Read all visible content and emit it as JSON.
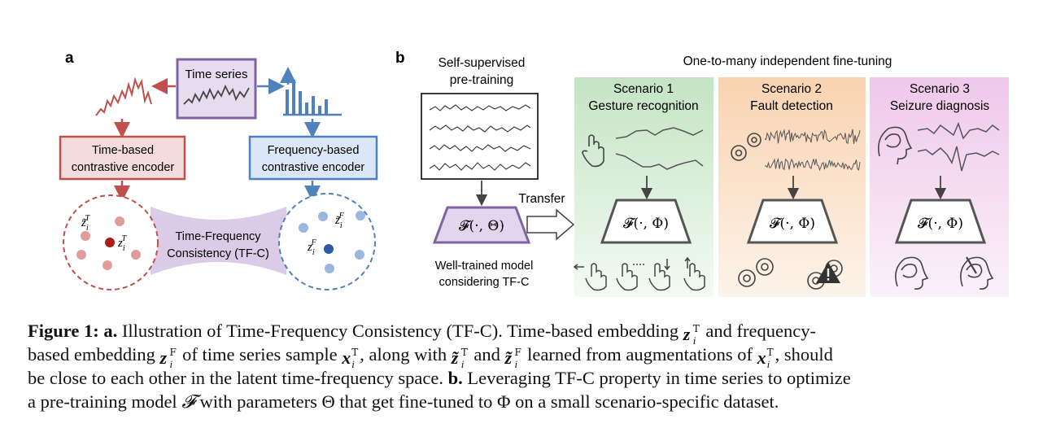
{
  "panel_a": {
    "label": "a",
    "time_series_label": "Time series",
    "time_encoder": [
      "Time-based",
      "contrastive encoder"
    ],
    "freq_encoder": [
      "Frequency-based",
      "contrastive encoder"
    ],
    "consistency": [
      "Time-Frequency",
      "Consistency (TF-C)"
    ],
    "z_t_aug": "z̃",
    "z_t": "z",
    "z_f_aug": "z̃",
    "z_f": "z",
    "sub_i": "i",
    "sup_T": "T",
    "sup_F": "F"
  },
  "panel_b": {
    "label": "b",
    "pretrain_title": [
      "Self-supervised",
      "pre-training"
    ],
    "finetune_title": "One-to-many independent fine-tuning",
    "transfer": "Transfer",
    "pretrain_model": "𝓕(·, Θ)",
    "finetune_model": "𝓕(·, Φ)",
    "well_trained": [
      "Well-trained model",
      "considering TF-C"
    ],
    "scenarios": [
      {
        "title": "Scenario 1",
        "subtitle": "Gesture recognition"
      },
      {
        "title": "Scenario 2",
        "subtitle": "Fault detection"
      },
      {
        "title": "Scenario 3",
        "subtitle": "Seizure diagnosis"
      }
    ]
  },
  "colors": {
    "time_red": "#c0504d",
    "freq_blue": "#4f81bd",
    "purple": "#8064a2",
    "green_bg": "#d7ecd6",
    "orange_bg": "#fbe0c8",
    "pink_bg": "#f2d6ee"
  },
  "caption": {
    "fig": "Figure 1:",
    "a": "a.",
    "t1": "Illustration of Time-Frequency Consistency (TF-C). Time-based embedding",
    "t2": "and frequency-",
    "t3": "based embedding",
    "t4": "of time series sample",
    "t5": ", along with",
    "t6": "and",
    "t7": "learned from augmentations of",
    "t8": ", should",
    "t9": "be close to each other in the latent time-frequency space.",
    "b": "b.",
    "t10": "Leveraging TF-C property in time series to optimize",
    "t11": "a pre-training model",
    "t12": "with parameters Θ that get fine-tuned to Φ on a small scenario-specific dataset.",
    "z": "z",
    "x": "x",
    "i": "i",
    "T": "T",
    "F": "F",
    "curF": "𝓕"
  }
}
